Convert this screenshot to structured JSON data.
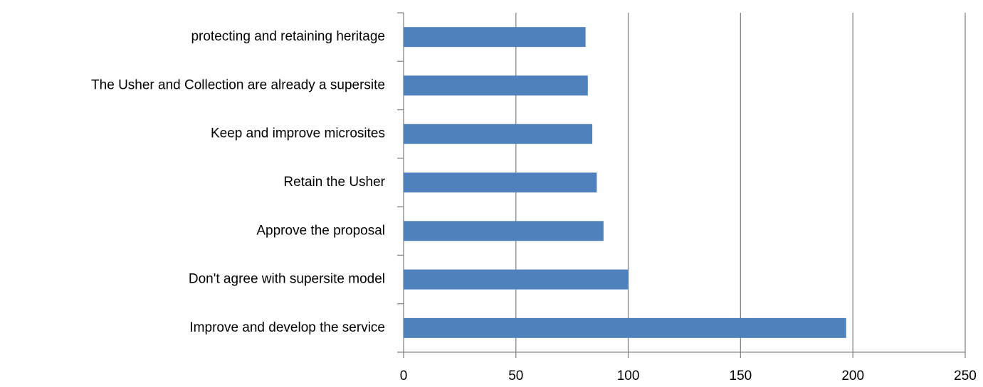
{
  "chart_data": {
    "type": "barh",
    "categories": [
      "Improve and develop the service",
      "Don't agree with supersite model",
      "Approve the proposal",
      "Retain the Usher",
      "Keep and improve microsites",
      "The Usher and Collection are already a supersite",
      "protecting and retaining heritage"
    ],
    "values": [
      197,
      100,
      89,
      86,
      84,
      82,
      81
    ],
    "color": "#4f81bd",
    "xlim": [
      0,
      250
    ],
    "xticks": [
      0,
      50,
      100,
      150,
      200,
      250
    ],
    "grid": true
  }
}
